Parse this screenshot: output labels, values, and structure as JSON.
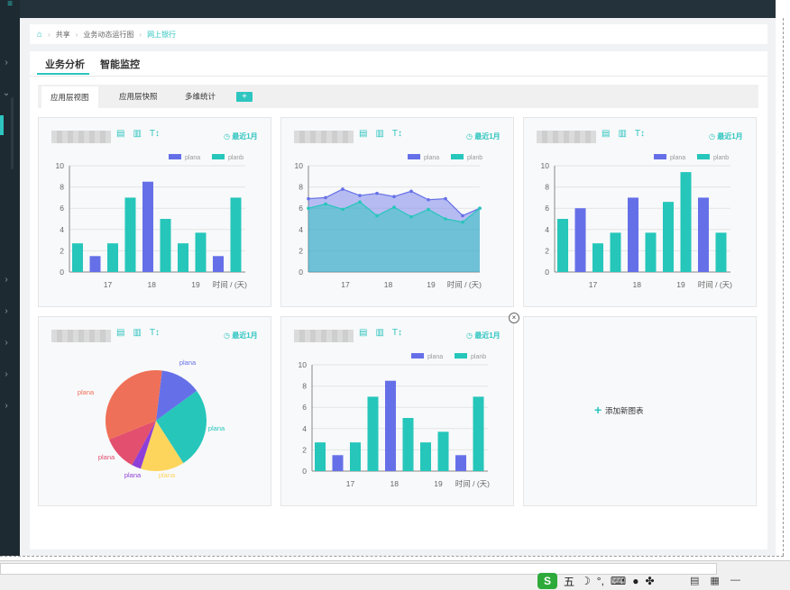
{
  "breadcrumb": {
    "items": [
      "共享",
      "业务动态运行图"
    ],
    "active": "网上银行"
  },
  "tabs": [
    {
      "label": "业务分析",
      "active": true
    },
    {
      "label": "智能监控",
      "active": false
    }
  ],
  "subtabs": [
    {
      "label": "应用层视图",
      "active": true
    },
    {
      "label": "应用层快照",
      "active": false
    },
    {
      "label": "多维统计",
      "active": false
    }
  ],
  "subtab_add_label": "+",
  "card_common": {
    "recent_label": "最近1月",
    "x_axis_unit": "时间 / (天)"
  },
  "add_chart_label": "添加新图表",
  "colors": {
    "accent": "#2ec5c0",
    "plana": "#6570e8",
    "planb": "#26c6bb"
  },
  "icons": [
    "home-icon",
    "table-icon",
    "bar-chart-icon",
    "sort-icon",
    "clock-icon",
    "close-icon",
    "plus-icon"
  ],
  "chart_data": [
    {
      "type": "bar",
      "legend": [
        "plana",
        "planb"
      ],
      "x_ticks": [
        "17",
        "18",
        "19"
      ],
      "xlabel": "时间 / (天)",
      "ylim": [
        0,
        10
      ],
      "y_ticks": [
        0,
        2,
        4,
        6,
        8,
        10
      ],
      "bars": [
        {
          "series": "planb",
          "value": 2.7
        },
        {
          "series": "plana",
          "value": 1.5
        },
        {
          "series": "planb",
          "value": 2.7
        },
        {
          "series": "planb",
          "value": 7.0
        },
        {
          "series": "plana",
          "value": 8.5
        },
        {
          "series": "planb",
          "value": 5.0
        },
        {
          "series": "planb",
          "value": 2.7
        },
        {
          "series": "planb",
          "value": 3.7
        },
        {
          "series": "plana",
          "value": 1.5
        },
        {
          "series": "planb",
          "value": 7.0
        }
      ]
    },
    {
      "type": "area",
      "legend": [
        "plana",
        "planb"
      ],
      "x_ticks": [
        "17",
        "18",
        "19"
      ],
      "xlabel": "时间 / (天)",
      "ylim": [
        0,
        10
      ],
      "y_ticks": [
        0,
        2,
        4,
        6,
        8,
        10
      ],
      "series": [
        {
          "name": "plana",
          "values": [
            6.9,
            7.0,
            7.8,
            7.2,
            7.4,
            7.1,
            7.6,
            6.8,
            6.9,
            5.3,
            6.0
          ]
        },
        {
          "name": "planb",
          "values": [
            6.0,
            6.4,
            5.9,
            6.6,
            5.3,
            6.1,
            5.2,
            5.9,
            5.0,
            4.7,
            6.0
          ]
        }
      ]
    },
    {
      "type": "bar",
      "legend": [
        "plana",
        "planb"
      ],
      "x_ticks": [
        "17",
        "18",
        "19"
      ],
      "xlabel": "时间 / (天)",
      "ylim": [
        0,
        10
      ],
      "y_ticks": [
        0,
        2,
        4,
        6,
        8,
        10
      ],
      "bars": [
        {
          "series": "planb",
          "value": 5.0
        },
        {
          "series": "plana",
          "value": 6.0
        },
        {
          "series": "planb",
          "value": 2.7
        },
        {
          "series": "planb",
          "value": 3.7
        },
        {
          "series": "plana",
          "value": 7.0
        },
        {
          "series": "planb",
          "value": 3.7
        },
        {
          "series": "planb",
          "value": 6.6
        },
        {
          "series": "planb",
          "value": 9.4
        },
        {
          "series": "plana",
          "value": 7.0
        },
        {
          "series": "planb",
          "value": 3.7
        }
      ]
    },
    {
      "type": "pie",
      "slices": [
        {
          "label": "plana",
          "value": 13,
          "color": "#6570e8"
        },
        {
          "label": "plana",
          "value": 26,
          "color": "#26c6bb"
        },
        {
          "label": "plana",
          "value": 14,
          "color": "#fdd55c"
        },
        {
          "label": "plana",
          "value": 3,
          "color": "#8e3fd8"
        },
        {
          "label": "plana",
          "value": 11,
          "color": "#e34f6e"
        },
        {
          "label": "plana",
          "value": 33,
          "color": "#ef7058"
        }
      ]
    },
    {
      "type": "bar",
      "legend": [
        "plana",
        "planb"
      ],
      "x_ticks": [
        "17",
        "18",
        "19"
      ],
      "xlabel": "时间 / (天)",
      "ylim": [
        0,
        10
      ],
      "y_ticks": [
        0,
        2,
        4,
        6,
        8,
        10
      ],
      "bars": [
        {
          "series": "planb",
          "value": 2.7
        },
        {
          "series": "plana",
          "value": 1.5
        },
        {
          "series": "planb",
          "value": 2.7
        },
        {
          "series": "planb",
          "value": 7.0
        },
        {
          "series": "plana",
          "value": 8.5
        },
        {
          "series": "planb",
          "value": 5.0
        },
        {
          "series": "planb",
          "value": 2.7
        },
        {
          "series": "planb",
          "value": 3.7
        },
        {
          "series": "plana",
          "value": 1.5
        },
        {
          "series": "planb",
          "value": 7.0
        }
      ]
    }
  ],
  "taskbar": {
    "ime_label": "S",
    "ime_mode": "五"
  }
}
